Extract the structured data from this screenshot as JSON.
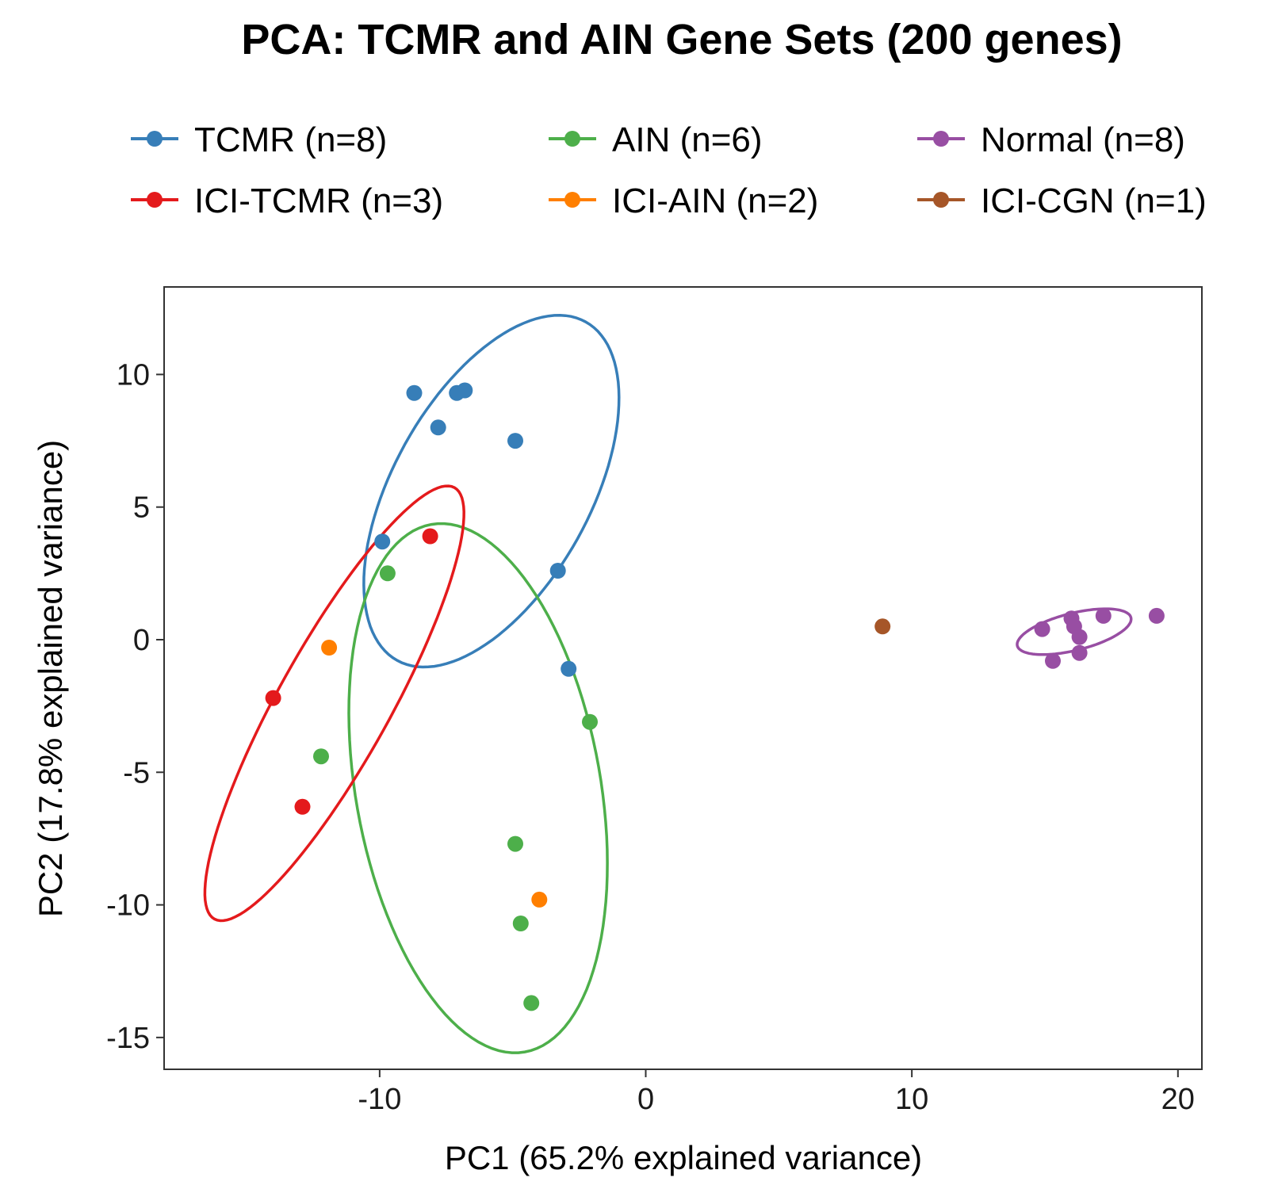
{
  "chart_data": {
    "type": "scatter",
    "title": "PCA: TCMR and AIN Gene Sets (200 genes)",
    "xlabel": "PC1 (65.2% explained variance)",
    "ylabel": "PC2 (17.8% explained variance)",
    "xlim": [
      -18.1,
      20.9
    ],
    "ylim": [
      -16.2,
      13.3
    ],
    "xticks": [
      -10,
      0,
      10,
      20
    ],
    "xtick_labels": [
      "-10",
      "0",
      "10",
      "20"
    ],
    "yticks": [
      -15,
      -10,
      -5,
      0,
      5,
      10
    ],
    "ytick_labels": [
      "-15",
      "-10",
      "-5",
      "0",
      "5",
      "10"
    ],
    "grid": false,
    "legend_position": "top",
    "series": [
      {
        "name": "TCMR (n=8)",
        "color": "#377EB8",
        "points": [
          [
            -8.7,
            9.3
          ],
          [
            -7.1,
            9.3
          ],
          [
            -6.8,
            9.4
          ],
          [
            -7.8,
            8.0
          ],
          [
            -4.9,
            7.5
          ],
          [
            -9.9,
            3.7
          ],
          [
            -3.3,
            2.6
          ],
          [
            -2.9,
            -1.1
          ]
        ],
        "ellipse": {
          "center": [
            -5.8,
            5.6
          ],
          "semi_axes": [
            7.3,
            3.7
          ],
          "angle_deg": 61
        }
      },
      {
        "name": "AIN (n=6)",
        "color": "#4DAF4A",
        "points": [
          [
            -9.7,
            2.5
          ],
          [
            -12.2,
            -4.4
          ],
          [
            -2.1,
            -3.1
          ],
          [
            -4.9,
            -7.7
          ],
          [
            -4.7,
            -10.7
          ],
          [
            -4.3,
            -13.7
          ]
        ],
        "ellipse": {
          "center": [
            -6.3,
            -5.6
          ],
          "semi_axes": [
            10.1,
            4.6
          ],
          "angle_deg": 100
        }
      },
      {
        "name": "Normal (n=8)",
        "color": "#984EA3",
        "points": [
          [
            14.9,
            0.4
          ],
          [
            15.3,
            -0.8
          ],
          [
            16.0,
            0.8
          ],
          [
            16.1,
            0.5
          ],
          [
            16.3,
            0.1
          ],
          [
            16.3,
            -0.5
          ],
          [
            17.2,
            0.9
          ],
          [
            19.2,
            0.9
          ]
        ],
        "ellipse": {
          "center": [
            16.1,
            0.3
          ],
          "semi_axes": [
            2.2,
            0.7
          ],
          "angle_deg": 14
        }
      },
      {
        "name": "ICI-TCMR (n=3)",
        "color": "#E41A1C",
        "points": [
          [
            -8.1,
            3.9
          ],
          [
            -14.0,
            -2.2
          ],
          [
            -12.9,
            -6.3
          ]
        ],
        "ellipse": {
          "center": [
            -11.7,
            -2.4
          ],
          "semi_axes": [
            9.3,
            2.1
          ],
          "angle_deg": 61
        }
      },
      {
        "name": "ICI-AIN (n=2)",
        "color": "#FF7F00",
        "points": [
          [
            -11.9,
            -0.3
          ],
          [
            -4.0,
            -9.8
          ]
        ]
      },
      {
        "name": "ICI-CGN (n=1)",
        "color": "#A65628",
        "points": [
          [
            8.9,
            0.5
          ]
        ]
      }
    ]
  }
}
